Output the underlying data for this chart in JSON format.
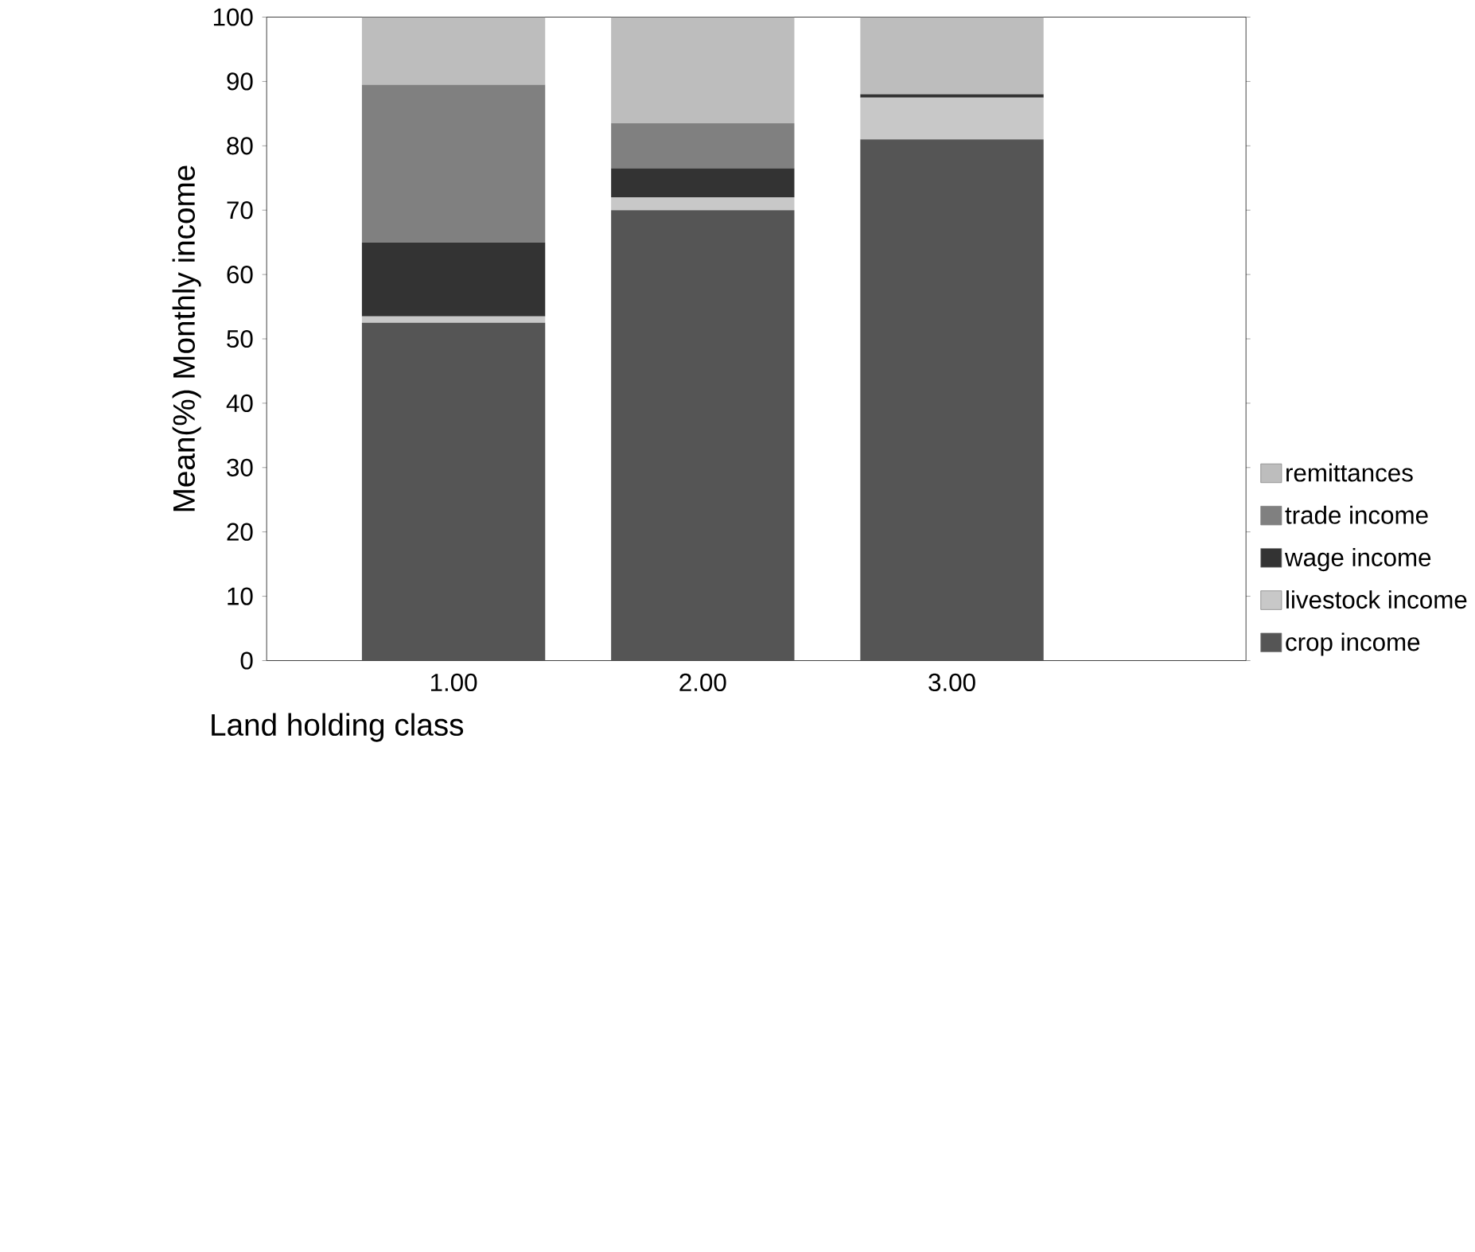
{
  "chart_data": {
    "type": "bar",
    "stacked": true,
    "xlabel": "Land holding class",
    "ylabel": "Mean(%) Monthly income",
    "categories": [
      "1.00",
      "2.00",
      "3.00"
    ],
    "series": [
      {
        "name": "crop income",
        "color": "#555555",
        "values": [
          52.5,
          70,
          81
        ]
      },
      {
        "name": "livestock income",
        "color": "#c8c8c8",
        "values": [
          1,
          2,
          6.5
        ]
      },
      {
        "name": "wage income",
        "color": "#333333",
        "values": [
          11.5,
          4.5,
          0.5
        ]
      },
      {
        "name": "trade income",
        "color": "#808080",
        "values": [
          24.5,
          7,
          0
        ]
      },
      {
        "name": "remittances",
        "color": "#bdbdbd",
        "values": [
          10.5,
          16.5,
          12
        ]
      }
    ],
    "ylim": [
      0,
      100
    ],
    "yticks": [
      0,
      10,
      20,
      30,
      40,
      50,
      60,
      70,
      80,
      90,
      100
    ],
    "legend": "right",
    "grid": false
  }
}
